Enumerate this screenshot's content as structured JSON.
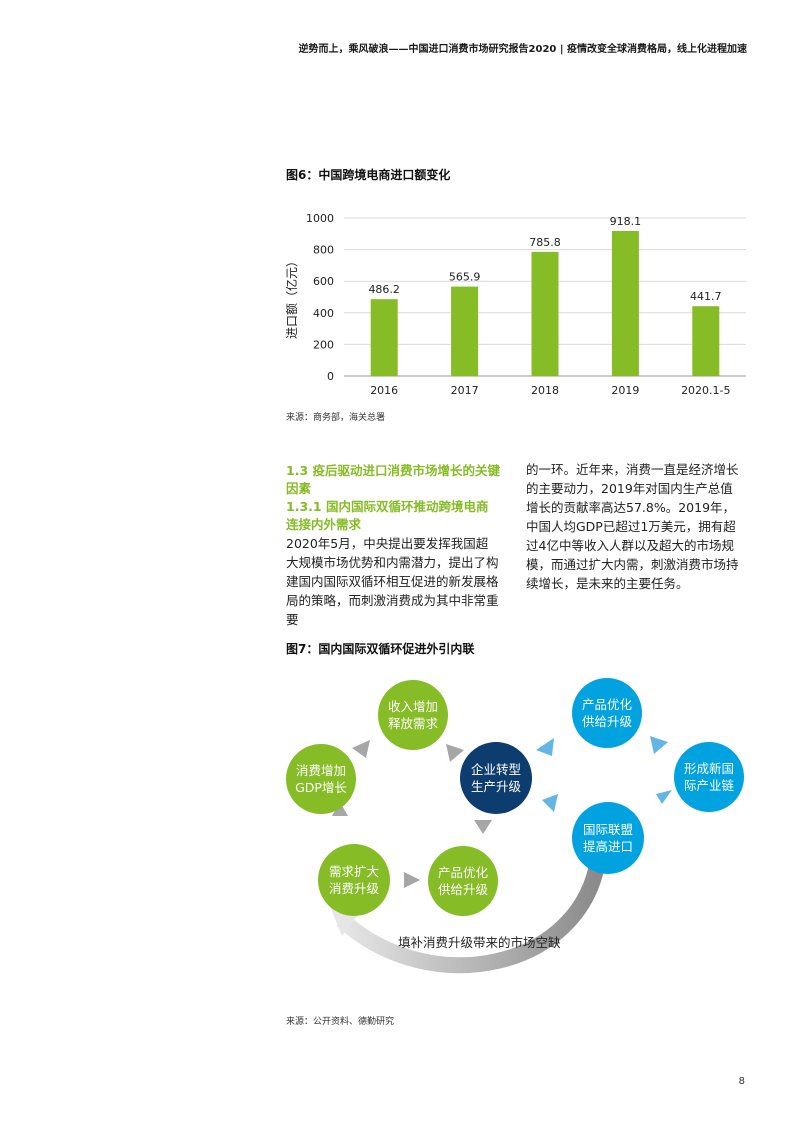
{
  "header": {
    "text": "逆势而上，乘风破浪——中国进口消费市场研究报告2020 | 疫情改变全球消费格局，线上化进程加速"
  },
  "figure6": {
    "title": "图6：中国跨境电商进口额变化",
    "source": "来源：商务部，海关总署"
  },
  "chart_data": {
    "type": "bar",
    "title": "图6：中国跨境电商进口额变化",
    "ylabel": "进口额（亿元）",
    "xlabel": "",
    "categories": [
      "2016",
      "2017",
      "2018",
      "2019",
      "2020.1-5"
    ],
    "values": [
      486.2,
      565.9,
      785.8,
      918.1,
      441.7
    ],
    "value_labels": [
      "486.2",
      "565.9",
      "785.8",
      "918.1",
      "441.7"
    ],
    "ylim": [
      0,
      1000
    ],
    "yticks": [
      0,
      200,
      400,
      600,
      800,
      1000
    ],
    "ytick_labels": [
      "0",
      "200",
      "400",
      "600",
      "800",
      "1000"
    ],
    "grid": true,
    "bar_color": "#86bc25"
  },
  "section": {
    "heading_1": "1.3 疫后驱动进口消费市场增长的关键因素",
    "heading_2": "1.3.1 国内国际双循环推动跨境电商连接内外需求",
    "para_left": "2020年5月，中央提出要发挥我国超大规模市场优势和内需潜力，提出了构建国内国际双循环相互促进的新发展格局的策略，而刺激消费成为其中非常重要",
    "para_right": "的一环。近年来，消费一直是经济增长的主要动力，2019年对国内生产总值增长的贡献率高达57.8%。2019年，中国人均GDP已超过1万美元，拥有超过4亿中等收入人群以及超大的市场规模，而通过扩大内需，刺激消费市场持续增长，是未来的主要任务。"
  },
  "figure7": {
    "title": "图7：国内国际双循环促进外引内联",
    "source": "来源：公开资料、德勤研究",
    "nodes": {
      "income": "收入增加\n释放需求",
      "consumption": "消费增加\nGDP增长",
      "demand": "需求扩大\n消费升级",
      "product_left": "产品优化\n供给升级",
      "enterprise": "企业转型\n生产升级",
      "product_right": "产品优化\n供给升级",
      "chain": "形成新国\n际产业链",
      "alliance": "国际联盟\n提高进口"
    },
    "arc_label": "填补消费升级带来的市场空缺",
    "colors": {
      "green": "#86bc25",
      "blue": "#00a3e0",
      "navy": "#0d3c6e",
      "gray_arrow": "#a6a6a6",
      "blue_arrow": "#62b5e5"
    }
  },
  "page": {
    "number": "8"
  }
}
